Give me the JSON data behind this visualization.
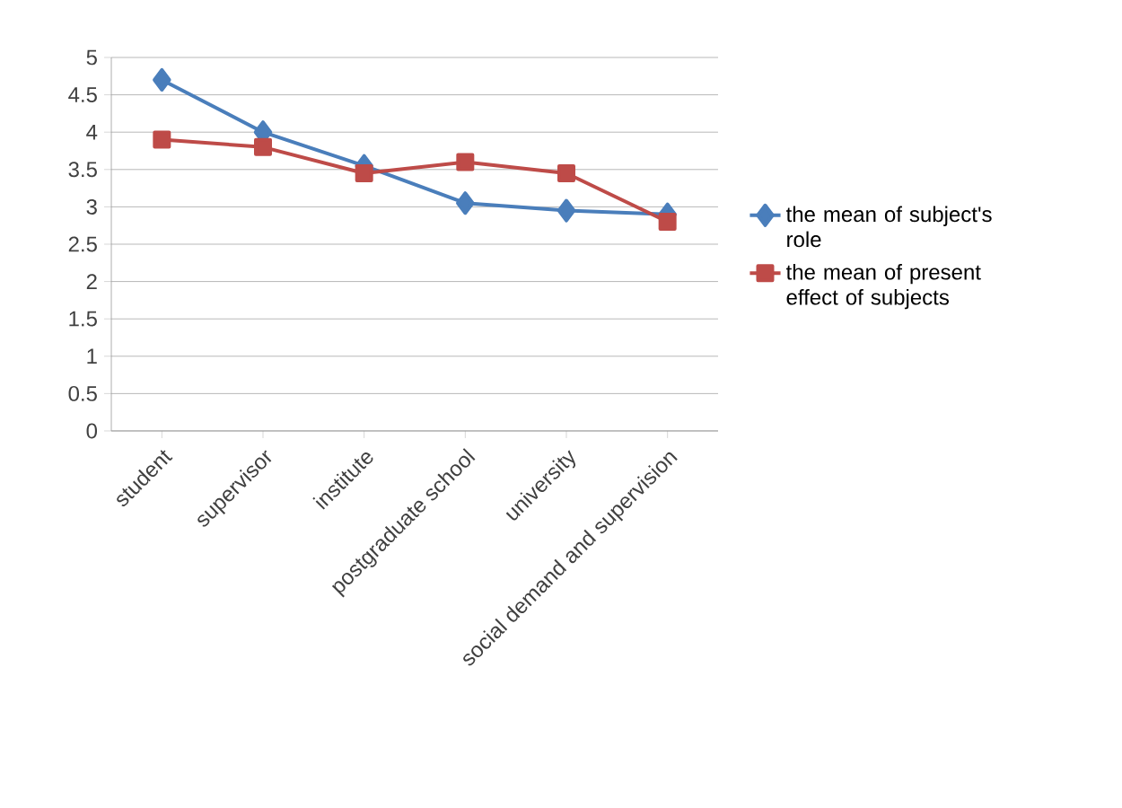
{
  "chart_data": {
    "type": "line",
    "categories": [
      "student",
      "supervisor",
      "institute",
      "postgraduate school",
      "university",
      "social demand and  supervision"
    ],
    "series": [
      {
        "name": "the mean of subject's role",
        "color": "#4a7ebb",
        "marker": "diamond",
        "values": [
          4.7,
          4.0,
          3.55,
          3.05,
          2.95,
          2.9
        ]
      },
      {
        "name": "the mean of present effect of subjects",
        "color": "#be4b48",
        "marker": "square",
        "values": [
          3.9,
          3.8,
          3.45,
          3.6,
          3.45,
          2.8
        ]
      }
    ],
    "ylim": [
      0,
      5
    ],
    "yticks": [
      0,
      0.5,
      1,
      1.5,
      2,
      2.5,
      3,
      3.5,
      4,
      4.5,
      5
    ],
    "grid": "y",
    "legend": "right",
    "line_style": "solid"
  }
}
